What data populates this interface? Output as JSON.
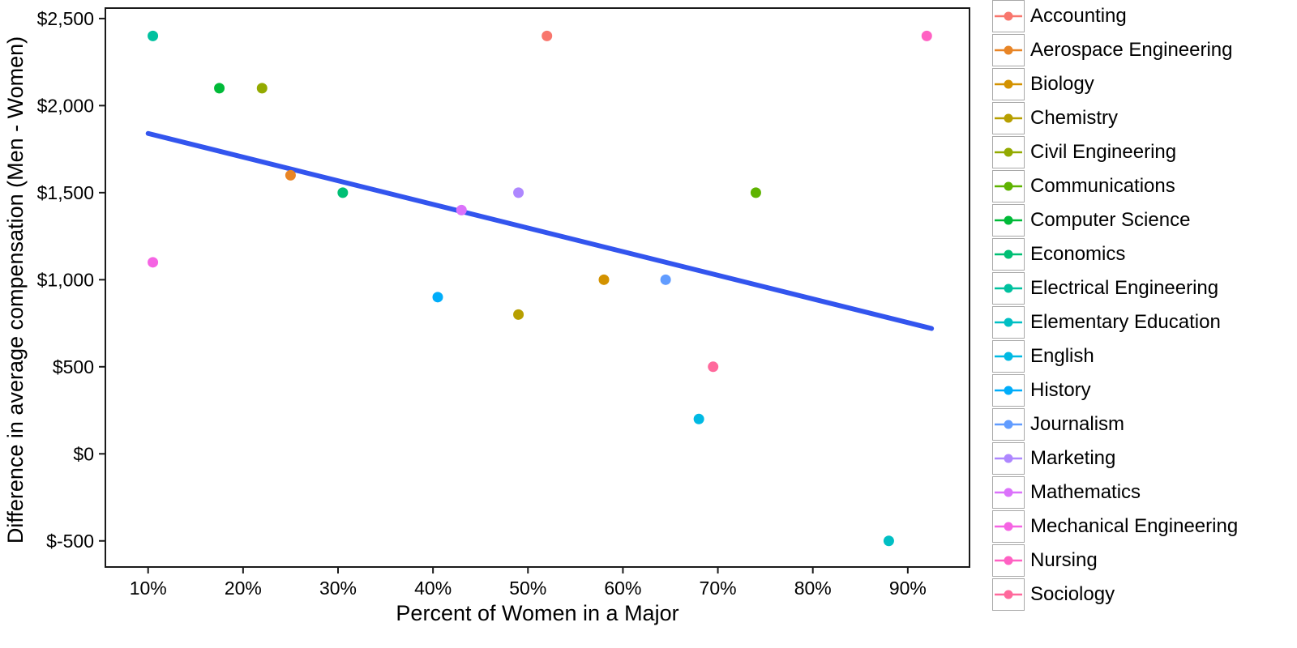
{
  "chart_data": {
    "type": "scatter",
    "title": "",
    "xlabel": "Percent of Women in a Major",
    "ylabel": "Difference in average compensation (Men - Women)",
    "xlim": [
      5.5,
      96.5
    ],
    "ylim": [
      -650,
      2560
    ],
    "grid": false,
    "legend_position": "right",
    "x_ticks": [
      {
        "value": 10,
        "label": "10%"
      },
      {
        "value": 20,
        "label": "20%"
      },
      {
        "value": 30,
        "label": "30%"
      },
      {
        "value": 40,
        "label": "40%"
      },
      {
        "value": 50,
        "label": "50%"
      },
      {
        "value": 60,
        "label": "60%"
      },
      {
        "value": 70,
        "label": "70%"
      },
      {
        "value": 80,
        "label": "80%"
      },
      {
        "value": 90,
        "label": "90%"
      }
    ],
    "y_ticks": [
      {
        "value": -500,
        "label": "$-500"
      },
      {
        "value": 0,
        "label": "$0"
      },
      {
        "value": 500,
        "label": "$500"
      },
      {
        "value": 1000,
        "label": "$1,000"
      },
      {
        "value": 1500,
        "label": "$1,500"
      },
      {
        "value": 2000,
        "label": "$2,000"
      },
      {
        "value": 2500,
        "label": "$2,500"
      }
    ],
    "points": [
      {
        "major": "Accounting",
        "x": 52,
        "y": 2400,
        "color": "#F8766D"
      },
      {
        "major": "Aerospace Engineering",
        "x": 25,
        "y": 1600,
        "color": "#E88526"
      },
      {
        "major": "Biology",
        "x": 58,
        "y": 1000,
        "color": "#D39200"
      },
      {
        "major": "Chemistry",
        "x": 49,
        "y": 800,
        "color": "#B79F00"
      },
      {
        "major": "Civil Engineering",
        "x": 22,
        "y": 2100,
        "color": "#93AA00"
      },
      {
        "major": "Communications",
        "x": 74,
        "y": 1500,
        "color": "#5EB300"
      },
      {
        "major": "Computer Science",
        "x": 17.5,
        "y": 2100,
        "color": "#00BA38"
      },
      {
        "major": "Economics",
        "x": 30.5,
        "y": 1500,
        "color": "#00BF74"
      },
      {
        "major": "Electrical Engineering",
        "x": 10.5,
        "y": 2400,
        "color": "#00C19F"
      },
      {
        "major": "Elementary Education",
        "x": 88,
        "y": -500,
        "color": "#00BFC4"
      },
      {
        "major": "English",
        "x": 68,
        "y": 200,
        "color": "#00B9E3"
      },
      {
        "major": "History",
        "x": 40.5,
        "y": 900,
        "color": "#00ADFA"
      },
      {
        "major": "Journalism",
        "x": 64.5,
        "y": 1000,
        "color": "#619CFF"
      },
      {
        "major": "Marketing",
        "x": 49,
        "y": 1500,
        "color": "#AE87FF"
      },
      {
        "major": "Mathematics",
        "x": 43,
        "y": 1400,
        "color": "#DB72FB"
      },
      {
        "major": "Mechanical Engineering",
        "x": 10.5,
        "y": 1100,
        "color": "#F564E3"
      },
      {
        "major": "Nursing",
        "x": 92,
        "y": 2400,
        "color": "#FF61C3"
      },
      {
        "major": "Sociology",
        "x": 69.5,
        "y": 500,
        "color": "#FF699C"
      }
    ],
    "trend": {
      "x1": 10,
      "y1": 1840,
      "x2": 92.5,
      "y2": 720,
      "color": "#3355EE",
      "width": 6
    }
  },
  "legend": {
    "items": [
      {
        "label": "Accounting",
        "color": "#F8766D"
      },
      {
        "label": "Aerospace Engineering",
        "color": "#E88526"
      },
      {
        "label": "Biology",
        "color": "#D39200"
      },
      {
        "label": "Chemistry",
        "color": "#B79F00"
      },
      {
        "label": "Civil Engineering",
        "color": "#93AA00"
      },
      {
        "label": "Communications",
        "color": "#5EB300"
      },
      {
        "label": "Computer Science",
        "color": "#00BA38"
      },
      {
        "label": "Economics",
        "color": "#00BF74"
      },
      {
        "label": "Electrical Engineering",
        "color": "#00C19F"
      },
      {
        "label": "Elementary Education",
        "color": "#00BFC4"
      },
      {
        "label": "English",
        "color": "#00B9E3"
      },
      {
        "label": "History",
        "color": "#00ADFA"
      },
      {
        "label": "Journalism",
        "color": "#619CFF"
      },
      {
        "label": "Marketing",
        "color": "#AE87FF"
      },
      {
        "label": "Mathematics",
        "color": "#DB72FB"
      },
      {
        "label": "Mechanical Engineering",
        "color": "#F564E3"
      },
      {
        "label": "Nursing",
        "color": "#FF61C3"
      },
      {
        "label": "Sociology",
        "color": "#FF699C"
      }
    ]
  }
}
